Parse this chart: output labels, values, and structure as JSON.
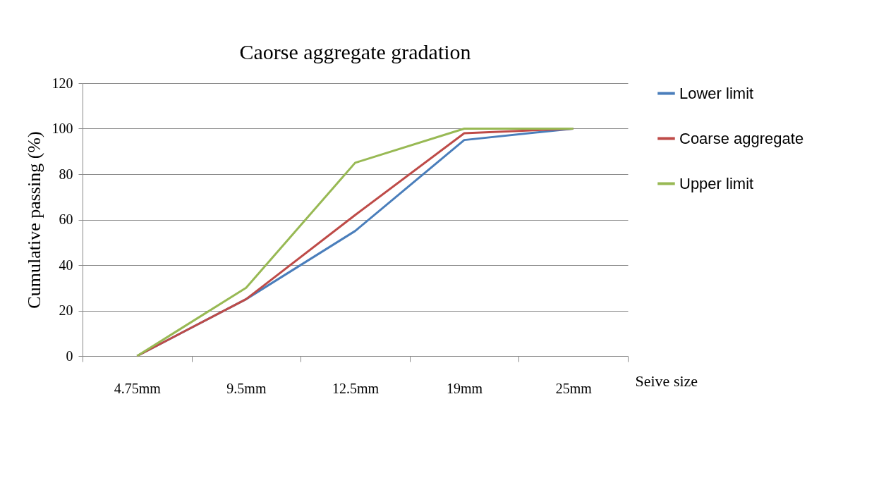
{
  "chart_data": {
    "type": "line",
    "title": "Caorse aggregate gradation",
    "xlabel": "Seive size",
    "ylabel": "Cumulative passing (%)",
    "categories": [
      "4.75mm",
      "9.5mm",
      "12.5mm",
      "19mm",
      "25mm"
    ],
    "series": [
      {
        "name": "Lower limit",
        "color": "#4a7ebb",
        "values": [
          0,
          25,
          55,
          95,
          100
        ]
      },
      {
        "name": "Coarse aggregate",
        "color": "#be4b48",
        "values": [
          0,
          25,
          62,
          98,
          100
        ]
      },
      {
        "name": "Upper limit",
        "color": "#98b954",
        "values": [
          0,
          30,
          85,
          100,
          100
        ]
      }
    ],
    "ylim": [
      0,
      120
    ],
    "yticks": [
      0,
      20,
      40,
      60,
      80,
      100,
      120
    ],
    "grid": "y",
    "legend": "right",
    "marker": "none",
    "line_style": "solid"
  }
}
